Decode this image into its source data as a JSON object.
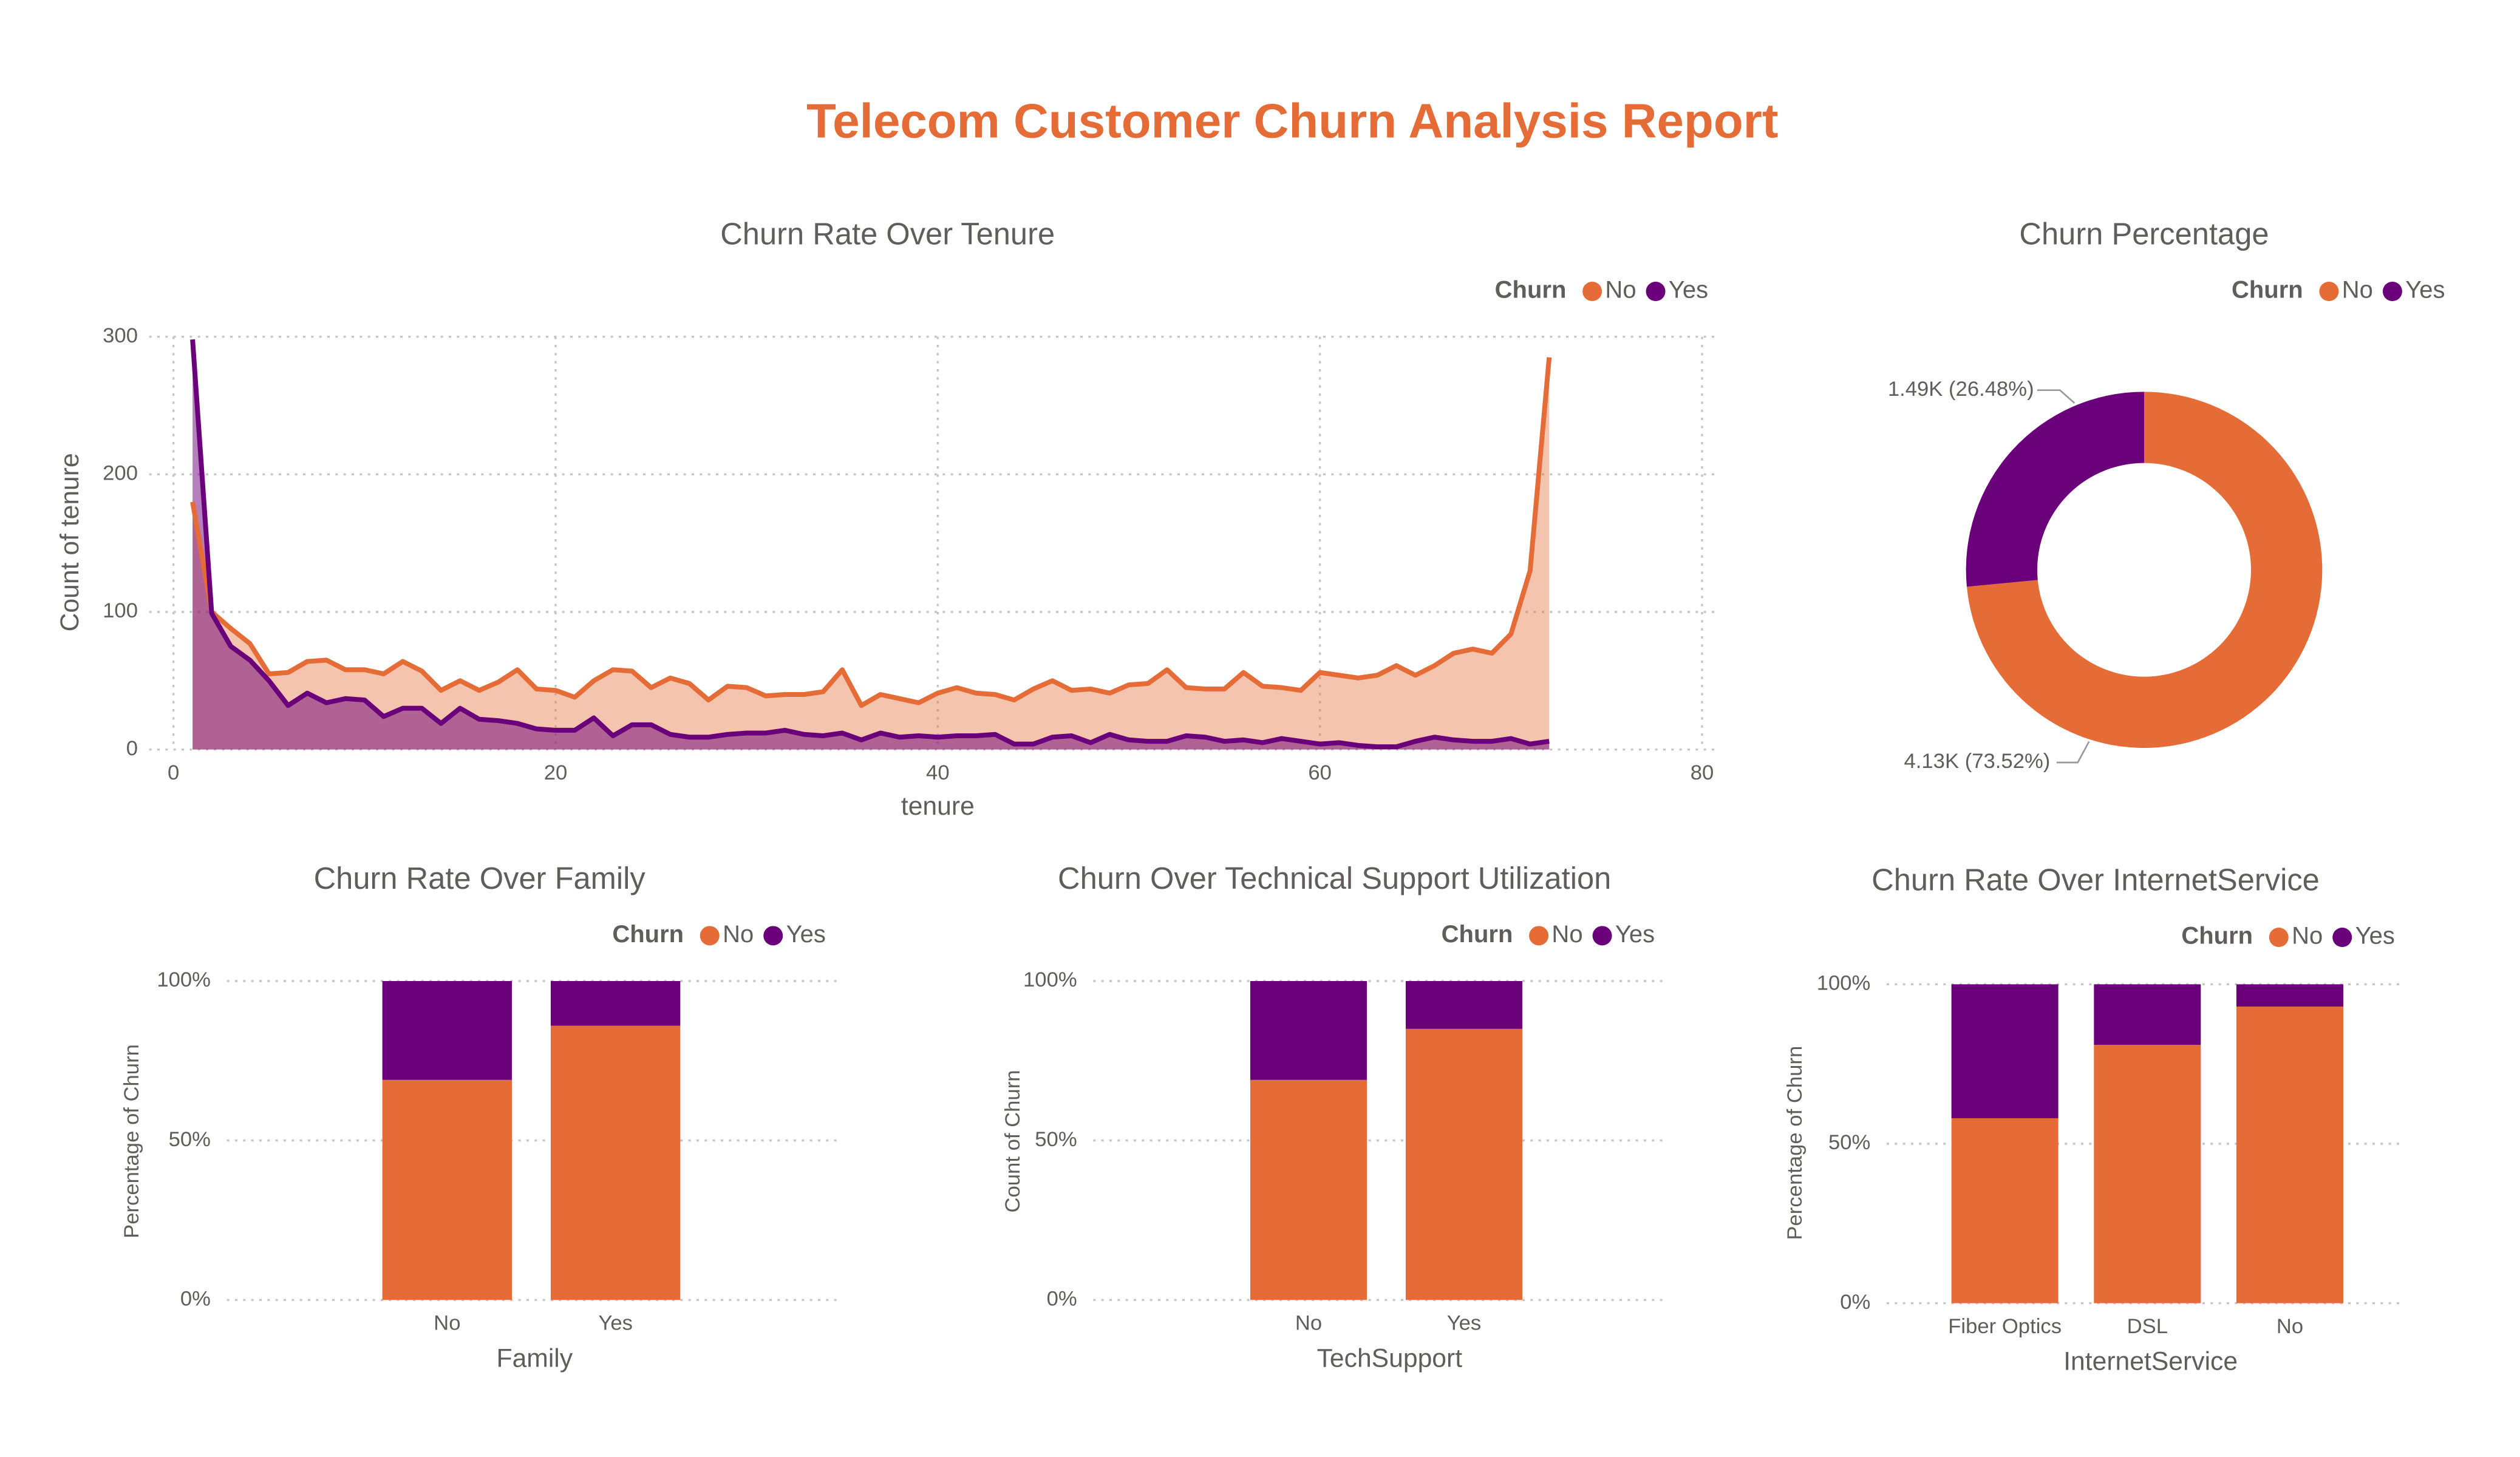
{
  "title": "Telecom Customer Churn Analysis Report",
  "chart_data": [
    {
      "type": "area",
      "title": "Churn Rate Over Tenure",
      "x_label": "tenure",
      "y_label": "Count of tenure",
      "legend_title": "Churn",
      "x": [
        1,
        2,
        3,
        4,
        5,
        6,
        7,
        8,
        9,
        10,
        11,
        12,
        13,
        14,
        15,
        16,
        17,
        18,
        19,
        20,
        21,
        22,
        23,
        24,
        25,
        26,
        27,
        28,
        29,
        30,
        31,
        32,
        33,
        34,
        35,
        36,
        37,
        38,
        39,
        40,
        41,
        42,
        43,
        44,
        45,
        46,
        47,
        48,
        49,
        50,
        51,
        52,
        53,
        54,
        55,
        56,
        57,
        58,
        59,
        60,
        61,
        62,
        63,
        64,
        65,
        66,
        67,
        68,
        69,
        70,
        71,
        72
      ],
      "series": [
        {
          "name": "No",
          "color": "#E66C37",
          "values": [
            180,
            100,
            88,
            77,
            55,
            56,
            64,
            65,
            58,
            58,
            55,
            64,
            57,
            43,
            50,
            43,
            49,
            58,
            44,
            43,
            38,
            50,
            58,
            57,
            45,
            52,
            48,
            36,
            46,
            45,
            39,
            40,
            40,
            42,
            58,
            32,
            40,
            37,
            34,
            41,
            45,
            41,
            40,
            36,
            44,
            50,
            43,
            44,
            41,
            47,
            48,
            58,
            45,
            44,
            44,
            56,
            46,
            45,
            43,
            56,
            54,
            52,
            54,
            61,
            54,
            61,
            70,
            73,
            70,
            84,
            130,
            285
          ]
        },
        {
          "name": "Yes",
          "color": "#6B007B",
          "values": [
            298,
            99,
            75,
            65,
            50,
            32,
            41,
            34,
            37,
            36,
            24,
            30,
            30,
            19,
            30,
            22,
            21,
            19,
            15,
            14,
            14,
            23,
            10,
            18,
            18,
            11,
            9,
            9,
            11,
            12,
            12,
            14,
            11,
            10,
            12,
            7,
            12,
            9,
            10,
            9,
            10,
            10,
            11,
            4,
            4,
            9,
            10,
            5,
            11,
            7,
            6,
            6,
            10,
            9,
            6,
            7,
            5,
            8,
            6,
            4,
            5,
            3,
            2,
            2,
            6,
            9,
            7,
            6,
            6,
            8,
            4,
            6
          ]
        }
      ],
      "xlim": [
        0,
        80
      ],
      "xticks": [
        0,
        20,
        40,
        60,
        80
      ],
      "ylim": [
        0,
        300
      ],
      "yticks": [
        0,
        100,
        200,
        300
      ],
      "grid": true
    },
    {
      "type": "donut",
      "title": "Churn Percentage",
      "legend_title": "Churn",
      "categories": [
        "No",
        "Yes"
      ],
      "colors": [
        "#E66C37",
        "#6B007B"
      ],
      "values": [
        4130,
        1490
      ],
      "value_labels": [
        "4.13K (73.52%)",
        "1.49K (26.48%)"
      ]
    },
    {
      "type": "bar",
      "stacked": true,
      "title": "Churn Rate Over Family",
      "x_label": "Family",
      "y_label": "Percentage of Churn",
      "legend_title": "Churn",
      "categories": [
        "No",
        "Yes"
      ],
      "series": [
        {
          "name": "No",
          "color": "#E66C37",
          "values": [
            69,
            86
          ]
        },
        {
          "name": "Yes",
          "color": "#6B007B",
          "values": [
            31,
            14
          ]
        }
      ],
      "ylim": [
        0,
        100
      ],
      "yticks": [
        {
          "value": 0,
          "label": "0%"
        },
        {
          "value": 50,
          "label": "50%"
        },
        {
          "value": 100,
          "label": "100%"
        }
      ],
      "grid": true
    },
    {
      "type": "bar",
      "stacked": true,
      "title": "Churn Over Technical Support Utilization",
      "x_label": "TechSupport",
      "y_label": "Count of Churn",
      "legend_title": "Churn",
      "categories": [
        "No",
        "Yes"
      ],
      "series": [
        {
          "name": "No",
          "color": "#E66C37",
          "values": [
            69,
            85
          ]
        },
        {
          "name": "Yes",
          "color": "#6B007B",
          "values": [
            31,
            15
          ]
        }
      ],
      "ylim": [
        0,
        100
      ],
      "yticks": [
        {
          "value": 0,
          "label": "0%"
        },
        {
          "value": 50,
          "label": "50%"
        },
        {
          "value": 100,
          "label": "100%"
        }
      ],
      "grid": true
    },
    {
      "type": "bar",
      "stacked": true,
      "title": "Churn Rate Over InternetService",
      "x_label": "InternetService",
      "y_label": "Percentage of Churn",
      "legend_title": "Churn",
      "categories": [
        "Fiber Optics",
        "DSL",
        "No"
      ],
      "series": [
        {
          "name": "No",
          "color": "#E66C37",
          "values": [
            58,
            81,
            93
          ]
        },
        {
          "name": "Yes",
          "color": "#6B007B",
          "values": [
            42,
            19,
            7
          ]
        }
      ],
      "ylim": [
        0,
        100
      ],
      "yticks": [
        {
          "value": 0,
          "label": "0%"
        },
        {
          "value": 50,
          "label": "50%"
        },
        {
          "value": 100,
          "label": "100%"
        }
      ],
      "grid": true
    }
  ]
}
